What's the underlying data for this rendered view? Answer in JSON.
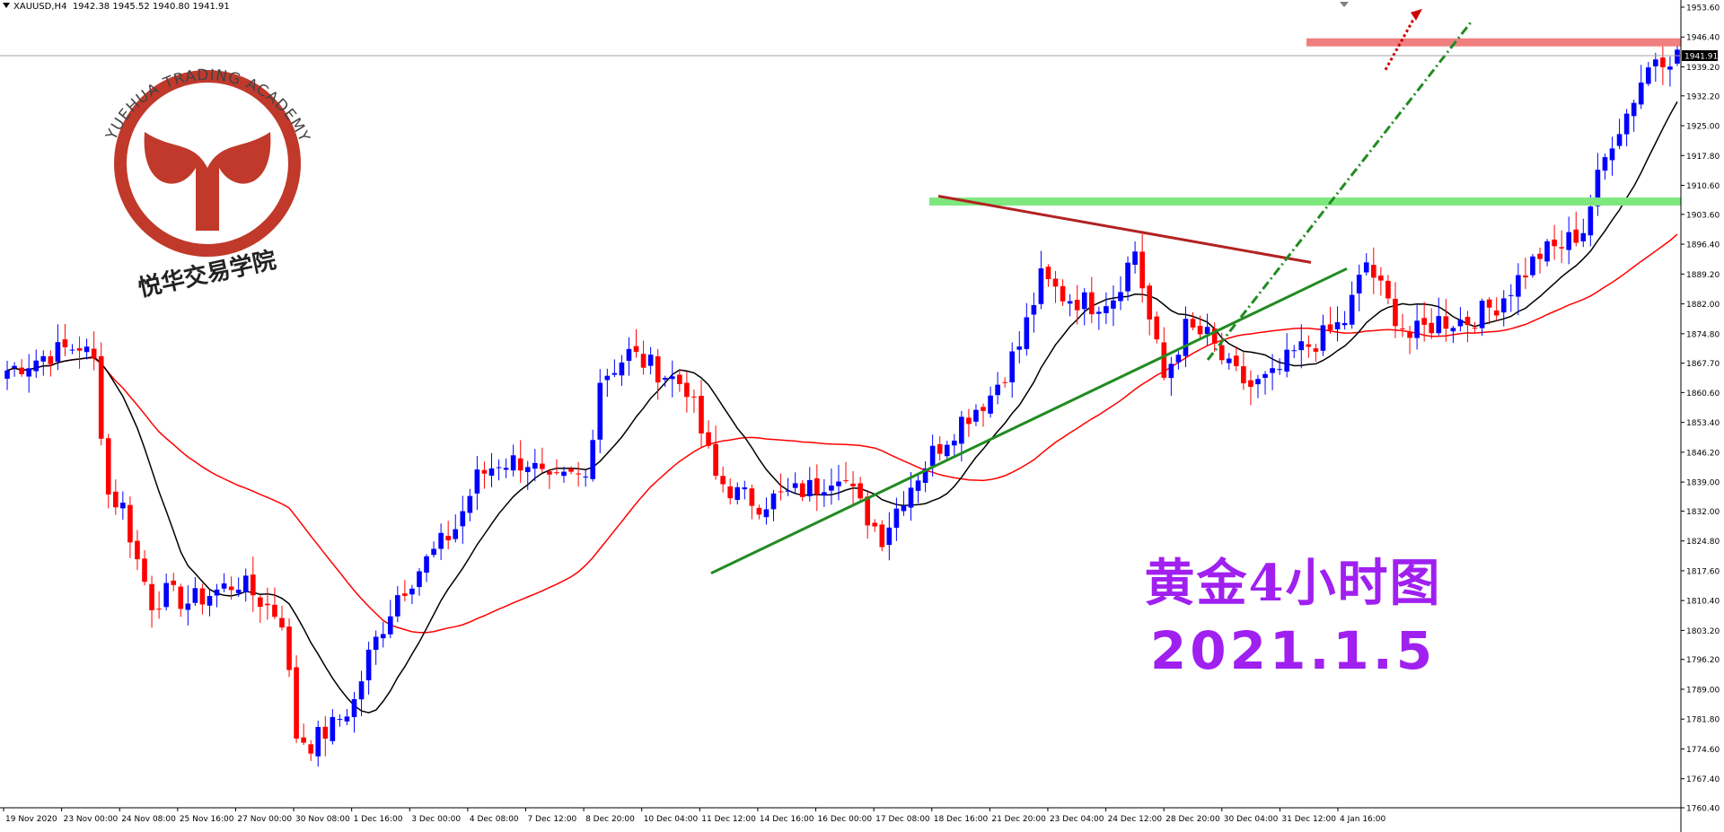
{
  "header": {
    "symbol": "XAUUSD,H4",
    "ohlc": "1942.38 1945.52 1940.80 1941.91"
  },
  "logo": {
    "arc_text": "YUEHUA TRADING ACADEMY",
    "chinese_text": "悦华交易学院",
    "color": "#c0392b"
  },
  "annotation": {
    "title": "黄金4小时图",
    "date": "2021.1.5",
    "color": "#a020f0"
  },
  "chart_data": {
    "type": "candlestick",
    "symbol": "XAUUSD",
    "timeframe": "H4",
    "current_price": 1941.91,
    "ylim": [
      1760.4,
      1953.6
    ],
    "y_ticks": [
      1953.6,
      1946.4,
      1939.2,
      1932.2,
      1925.0,
      1917.8,
      1910.6,
      1903.6,
      1896.4,
      1889.2,
      1882.0,
      1874.8,
      1867.7,
      1860.6,
      1853.4,
      1846.2,
      1839.0,
      1832.0,
      1824.8,
      1817.6,
      1810.4,
      1803.2,
      1796.2,
      1789.0,
      1781.8,
      1774.6,
      1767.4,
      1760.4
    ],
    "x_labels": [
      "19 Nov 2020",
      "23 Nov 00:00",
      "24 Nov 08:00",
      "25 Nov 16:00",
      "27 Nov 00:00",
      "30 Nov 08:00",
      "1 Dec 16:00",
      "3 Dec 00:00",
      "4 Dec 08:00",
      "7 Dec 12:00",
      "8 Dec 20:00",
      "10 Dec 04:00",
      "11 Dec 12:00",
      "14 Dec 16:00",
      "16 Dec 00:00",
      "17 Dec 08:00",
      "18 Dec 16:00",
      "21 Dec 20:00",
      "23 Dec 04:00",
      "24 Dec 12:00",
      "28 Dec 20:00",
      "30 Dec 04:00",
      "31 Dec 12:00",
      "4 Jan 16:00"
    ],
    "bull_color": "#0000ff",
    "bear_color": "#ff0000",
    "close_path": [
      [
        0,
        1866
      ],
      [
        6,
        1870
      ],
      [
        10,
        1872
      ],
      [
        12,
        1868
      ],
      [
        14,
        1836
      ],
      [
        16,
        1833
      ],
      [
        18,
        1820
      ],
      [
        20,
        1810
      ],
      [
        22,
        1812
      ],
      [
        25,
        1810
      ],
      [
        28,
        1812
      ],
      [
        32,
        1815
      ],
      [
        36,
        1809
      ],
      [
        38,
        1806
      ],
      [
        40,
        1778
      ],
      [
        42,
        1776
      ],
      [
        45,
        1780
      ],
      [
        48,
        1786
      ],
      [
        50,
        1797
      ],
      [
        54,
        1812
      ],
      [
        58,
        1820
      ],
      [
        62,
        1828
      ],
      [
        65,
        1840
      ],
      [
        68,
        1844
      ],
      [
        72,
        1844
      ],
      [
        75,
        1838
      ],
      [
        78,
        1840
      ],
      [
        80,
        1840
      ],
      [
        82,
        1864
      ],
      [
        86,
        1870
      ],
      [
        90,
        1866
      ],
      [
        94,
        1862
      ],
      [
        98,
        1840
      ],
      [
        101,
        1836
      ],
      [
        104,
        1834
      ],
      [
        108,
        1836
      ],
      [
        112,
        1838
      ],
      [
        115,
        1842
      ],
      [
        118,
        1833
      ],
      [
        121,
        1826
      ],
      [
        124,
        1836
      ],
      [
        128,
        1846
      ],
      [
        132,
        1854
      ],
      [
        136,
        1860
      ],
      [
        140,
        1872
      ],
      [
        143,
        1888
      ],
      [
        146,
        1884
      ],
      [
        150,
        1882
      ],
      [
        153,
        1884
      ],
      [
        156,
        1895
      ],
      [
        158,
        1878
      ],
      [
        160,
        1864
      ],
      [
        163,
        1876
      ],
      [
        166,
        1874
      ],
      [
        169,
        1866
      ],
      [
        172,
        1862
      ],
      [
        175,
        1864
      ],
      [
        178,
        1870
      ],
      [
        182,
        1874
      ],
      [
        185,
        1878
      ],
      [
        188,
        1892
      ],
      [
        191,
        1882
      ],
      [
        194,
        1874
      ],
      [
        198,
        1878
      ],
      [
        202,
        1878
      ],
      [
        206,
        1882
      ],
      [
        209,
        1888
      ],
      [
        212,
        1894
      ],
      [
        215,
        1896
      ],
      [
        218,
        1900
      ],
      [
        220,
        1912
      ],
      [
        222,
        1922
      ],
      [
        224,
        1928
      ],
      [
        226,
        1936
      ],
      [
        228,
        1942
      ],
      [
        230,
        1941.9
      ]
    ],
    "indicators": [
      {
        "type": "moving_average",
        "color": "#ff0000"
      },
      {
        "type": "moving_average",
        "color": "#000000"
      }
    ],
    "drawings": [
      {
        "type": "horizontal_zone",
        "price": 1945.0,
        "color": "#f08080"
      },
      {
        "type": "horizontal_zone",
        "price": 1906.8,
        "color": "#7ee87e"
      },
      {
        "type": "support_trendline",
        "color": "#228b22"
      },
      {
        "type": "resistance_trendline",
        "color": "#b22222"
      },
      {
        "type": "projection_line",
        "color": "#228b22",
        "style": "dash-dot"
      },
      {
        "type": "projection_arrow",
        "color": "#cc0000",
        "style": "dotted"
      }
    ]
  }
}
